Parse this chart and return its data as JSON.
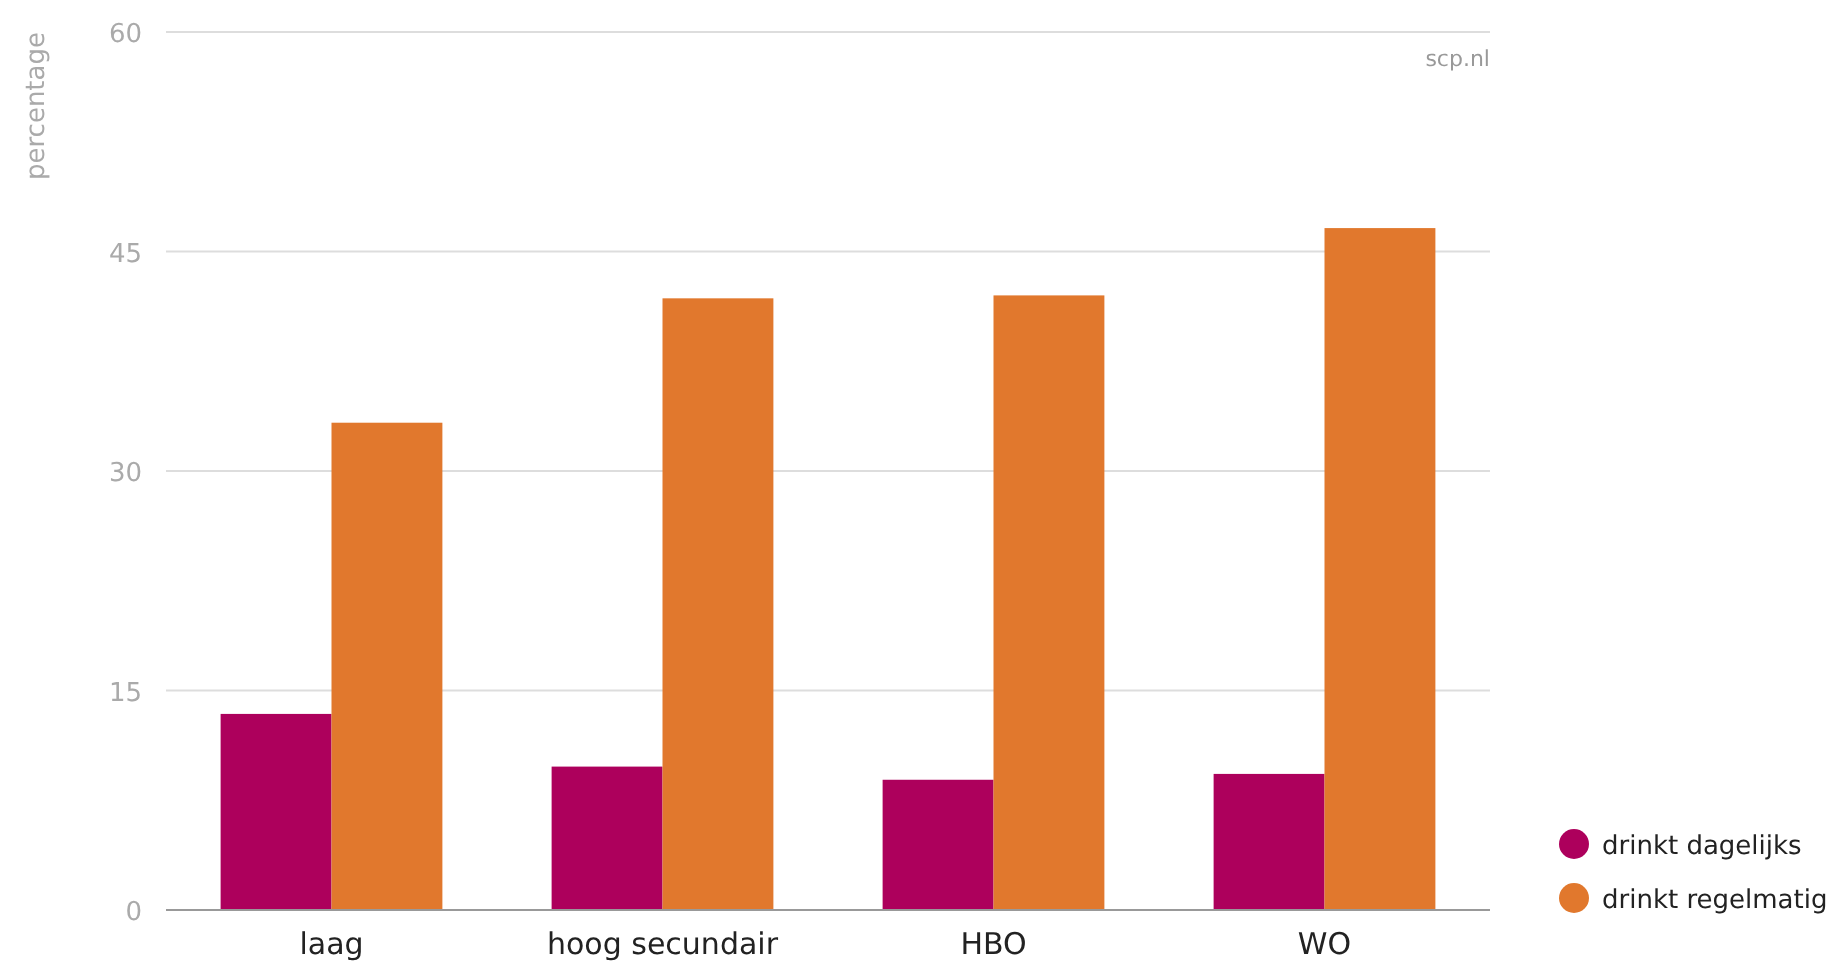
{
  "chart_data": {
    "type": "bar",
    "ylabel": "percentage",
    "categories": [
      "laag",
      "hoog secundair",
      "HBO",
      "WO"
    ],
    "series": [
      {
        "name": "drinkt dagelijks",
        "color": "#ad005c",
        "values": [
          13.4,
          9.8,
          8.9,
          9.3
        ]
      },
      {
        "name": "drinkt regelmatig",
        "color": "#e1782d",
        "values": [
          33.3,
          41.8,
          42.0,
          46.6
        ]
      }
    ],
    "ylim": [
      0,
      60
    ],
    "yticks": [
      0,
      15,
      30,
      45,
      60
    ],
    "grid": "y",
    "legend": "bottom right",
    "annotations": [
      "scp.nl"
    ]
  }
}
